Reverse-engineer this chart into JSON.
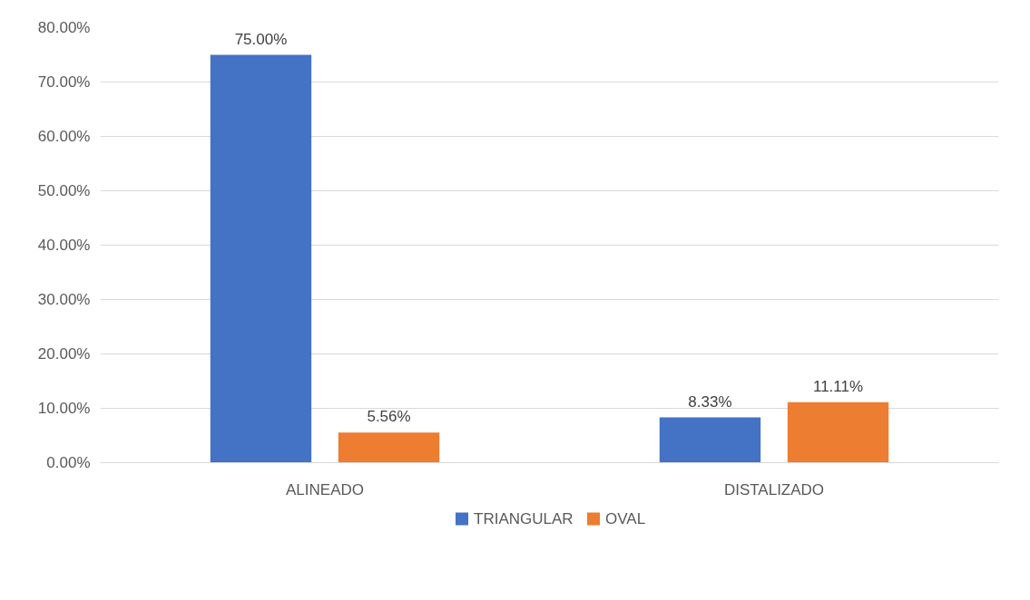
{
  "chart_data": {
    "type": "bar",
    "categories": [
      "ALINEADO",
      "DISTALIZADO"
    ],
    "series": [
      {
        "name": "TRIANGULAR",
        "color": "#4472c4",
        "values": [
          75.0,
          8.33
        ],
        "value_labels": [
          "75.00%",
          "8.33%"
        ]
      },
      {
        "name": "OVAL",
        "color": "#ed7d31",
        "values": [
          5.56,
          11.11
        ],
        "value_labels": [
          "5.56%",
          "11.11%"
        ]
      }
    ],
    "ylim": [
      0,
      80
    ],
    "yticks": [
      {
        "value": 0,
        "label": "0.00%"
      },
      {
        "value": 10,
        "label": "10.00%"
      },
      {
        "value": 20,
        "label": "20.00%"
      },
      {
        "value": 30,
        "label": "30.00%"
      },
      {
        "value": 40,
        "label": "40.00%"
      },
      {
        "value": 50,
        "label": "50.00%"
      },
      {
        "value": 60,
        "label": "60.00%"
      },
      {
        "value": 70,
        "label": "70.00%"
      },
      {
        "value": 80,
        "label": "80.00%"
      }
    ],
    "grid": "y",
    "legend": "bottom"
  }
}
